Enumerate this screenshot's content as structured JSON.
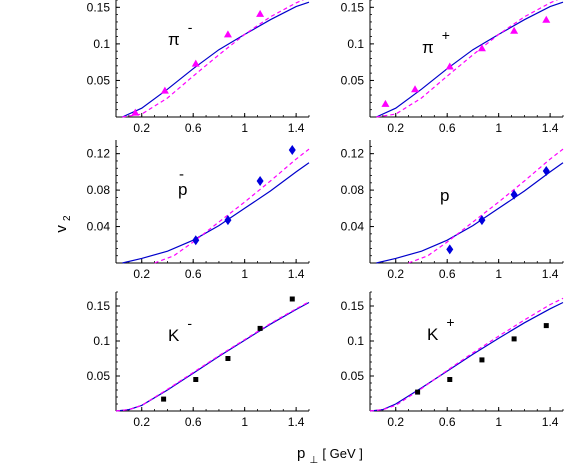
{
  "figure": {
    "ylabel_main": "v",
    "ylabel_sub": "2",
    "xlabel_main": "p",
    "xlabel_sub": "⊥",
    "xlabel_unit": " [ GeV ]"
  },
  "chart_data": [
    {
      "type": "scatter",
      "particle": {
        "base": "π",
        "sup": "-",
        "accent": ""
      },
      "xlim": [
        0,
        1.5
      ],
      "ylim": [
        0,
        0.16
      ],
      "x_ticks": [
        "0.2",
        "0.6",
        "1",
        "1.4"
      ],
      "y_ticks": [
        "0.05",
        "0.1",
        "0.15"
      ],
      "marker": {
        "shape": "triangle",
        "color": "#ff00ff"
      },
      "points": [
        [
          0.15,
          0.006
        ],
        [
          0.38,
          0.036
        ],
        [
          0.62,
          0.073
        ],
        [
          0.87,
          0.113
        ],
        [
          1.12,
          0.141
        ]
      ],
      "series": [
        {
          "style": "solid",
          "color": "#0000cc",
          "points": [
            [
              0.05,
              0.0
            ],
            [
              0.2,
              0.012
            ],
            [
              0.4,
              0.038
            ],
            [
              0.6,
              0.066
            ],
            [
              0.8,
              0.092
            ],
            [
              1.0,
              0.113
            ],
            [
              1.2,
              0.133
            ],
            [
              1.4,
              0.151
            ],
            [
              1.5,
              0.157
            ]
          ]
        },
        {
          "style": "dashed",
          "color": "#ff00ff",
          "points": [
            [
              0.05,
              0.0
            ],
            [
              0.2,
              0.004
            ],
            [
              0.4,
              0.026
            ],
            [
              0.6,
              0.056
            ],
            [
              0.8,
              0.085
            ],
            [
              1.0,
              0.113
            ],
            [
              1.2,
              0.137
            ],
            [
              1.4,
              0.156
            ],
            [
              1.5,
              0.164
            ]
          ]
        }
      ]
    },
    {
      "type": "scatter",
      "particle": {
        "base": "π",
        "sup": "+",
        "accent": ""
      },
      "xlim": [
        0,
        1.5
      ],
      "ylim": [
        0,
        0.16
      ],
      "x_ticks": [
        "0.2",
        "0.6",
        "1",
        "1.4"
      ],
      "y_ticks": [
        "0.05",
        "0.1",
        "0.15"
      ],
      "marker": {
        "shape": "triangle",
        "color": "#ff00ff"
      },
      "points": [
        [
          0.12,
          0.018
        ],
        [
          0.35,
          0.038
        ],
        [
          0.62,
          0.069
        ],
        [
          0.87,
          0.094
        ],
        [
          1.12,
          0.118
        ],
        [
          1.37,
          0.133
        ]
      ],
      "series": [
        {
          "style": "solid",
          "color": "#0000cc",
          "points": [
            [
              0.05,
              0.0
            ],
            [
              0.2,
              0.012
            ],
            [
              0.4,
              0.038
            ],
            [
              0.6,
              0.066
            ],
            [
              0.8,
              0.092
            ],
            [
              1.0,
              0.113
            ],
            [
              1.2,
              0.133
            ],
            [
              1.4,
              0.151
            ],
            [
              1.5,
              0.157
            ]
          ]
        },
        {
          "style": "dashed",
          "color": "#ff00ff",
          "points": [
            [
              0.05,
              0.0
            ],
            [
              0.2,
              0.004
            ],
            [
              0.4,
              0.026
            ],
            [
              0.6,
              0.056
            ],
            [
              0.8,
              0.085
            ],
            [
              1.0,
              0.113
            ],
            [
              1.2,
              0.137
            ],
            [
              1.4,
              0.156
            ],
            [
              1.5,
              0.164
            ]
          ]
        }
      ]
    },
    {
      "type": "scatter",
      "particle": {
        "base": "p",
        "sup": "",
        "accent": "-"
      },
      "xlim": [
        0,
        1.5
      ],
      "ylim": [
        0,
        0.135
      ],
      "x_ticks": [
        "0.2",
        "0.6",
        "1",
        "1.4"
      ],
      "y_ticks": [
        "0.04",
        "0.08",
        "0.12"
      ],
      "marker": {
        "shape": "diamond",
        "color": "#0000dd"
      },
      "points": [
        [
          0.62,
          0.025
        ],
        [
          0.87,
          0.047
        ],
        [
          1.12,
          0.09
        ],
        [
          1.37,
          0.124
        ]
      ],
      "series": [
        {
          "style": "solid",
          "color": "#0000cc",
          "points": [
            [
              0.05,
              0.0
            ],
            [
              0.2,
              0.005
            ],
            [
              0.4,
              0.013
            ],
            [
              0.6,
              0.025
            ],
            [
              0.8,
              0.041
            ],
            [
              1.0,
              0.06
            ],
            [
              1.2,
              0.079
            ],
            [
              1.4,
              0.1
            ],
            [
              1.5,
              0.11
            ]
          ]
        },
        {
          "style": "dashed",
          "color": "#ff00ff",
          "points": [
            [
              0.3,
              0.0
            ],
            [
              0.45,
              0.008
            ],
            [
              0.6,
              0.023
            ],
            [
              0.8,
              0.045
            ],
            [
              1.0,
              0.067
            ],
            [
              1.2,
              0.09
            ],
            [
              1.4,
              0.114
            ],
            [
              1.5,
              0.125
            ]
          ]
        }
      ]
    },
    {
      "type": "scatter",
      "particle": {
        "base": "p",
        "sup": "",
        "accent": ""
      },
      "xlim": [
        0,
        1.5
      ],
      "ylim": [
        0,
        0.135
      ],
      "x_ticks": [
        "0.2",
        "0.6",
        "1",
        "1.4"
      ],
      "y_ticks": [
        "0.04",
        "0.08",
        "0.12"
      ],
      "marker": {
        "shape": "diamond",
        "color": "#0000dd"
      },
      "points": [
        [
          0.62,
          0.015
        ],
        [
          0.87,
          0.047
        ],
        [
          1.12,
          0.075
        ],
        [
          1.37,
          0.101
        ]
      ],
      "series": [
        {
          "style": "solid",
          "color": "#0000cc",
          "points": [
            [
              0.05,
              0.0
            ],
            [
              0.2,
              0.005
            ],
            [
              0.4,
              0.013
            ],
            [
              0.6,
              0.025
            ],
            [
              0.8,
              0.041
            ],
            [
              1.0,
              0.06
            ],
            [
              1.2,
              0.079
            ],
            [
              1.4,
              0.1
            ],
            [
              1.5,
              0.11
            ]
          ]
        },
        {
          "style": "dashed",
          "color": "#ff00ff",
          "points": [
            [
              0.3,
              0.0
            ],
            [
              0.45,
              0.008
            ],
            [
              0.6,
              0.023
            ],
            [
              0.8,
              0.045
            ],
            [
              1.0,
              0.067
            ],
            [
              1.2,
              0.09
            ],
            [
              1.4,
              0.114
            ],
            [
              1.5,
              0.125
            ]
          ]
        }
      ]
    },
    {
      "type": "scatter",
      "particle": {
        "base": "K",
        "sup": "-",
        "accent": ""
      },
      "xlim": [
        0,
        1.5
      ],
      "ylim": [
        0,
        0.17
      ],
      "x_ticks": [
        "0.2",
        "0.6",
        "1",
        "1.4"
      ],
      "y_ticks": [
        "0.05",
        "0.1",
        "0.15"
      ],
      "marker": {
        "shape": "square",
        "color": "#000000"
      },
      "points": [
        [
          0.37,
          0.017
        ],
        [
          0.62,
          0.045
        ],
        [
          0.87,
          0.075
        ],
        [
          1.12,
          0.118
        ],
        [
          1.37,
          0.16
        ]
      ],
      "series": [
        {
          "style": "solid",
          "color": "#0000cc",
          "points": [
            [
              0.0,
              0.0
            ],
            [
              0.1,
              0.002
            ],
            [
              0.2,
              0.008
            ],
            [
              0.4,
              0.03
            ],
            [
              0.6,
              0.054
            ],
            [
              0.8,
              0.078
            ],
            [
              1.0,
              0.101
            ],
            [
              1.2,
              0.124
            ],
            [
              1.4,
              0.145
            ],
            [
              1.5,
              0.155
            ]
          ]
        },
        {
          "style": "dashed",
          "color": "#ff00ff",
          "points": [
            [
              0.0,
              0.0
            ],
            [
              0.1,
              0.002
            ],
            [
              0.2,
              0.008
            ],
            [
              0.4,
              0.031
            ],
            [
              0.6,
              0.055
            ],
            [
              0.8,
              0.079
            ],
            [
              1.0,
              0.102
            ],
            [
              1.2,
              0.125
            ],
            [
              1.4,
              0.146
            ],
            [
              1.5,
              0.156
            ]
          ]
        }
      ]
    },
    {
      "type": "scatter",
      "particle": {
        "base": "K",
        "sup": "+",
        "accent": ""
      },
      "xlim": [
        0,
        1.5
      ],
      "ylim": [
        0,
        0.17
      ],
      "x_ticks": [
        "0.2",
        "0.6",
        "1",
        "1.4"
      ],
      "y_ticks": [
        "0.05",
        "0.1",
        "0.15"
      ],
      "marker": {
        "shape": "square",
        "color": "#000000"
      },
      "points": [
        [
          0.37,
          0.027
        ],
        [
          0.62,
          0.045
        ],
        [
          0.87,
          0.073
        ],
        [
          1.12,
          0.103
        ],
        [
          1.37,
          0.122
        ]
      ],
      "series": [
        {
          "style": "solid",
          "color": "#0000cc",
          "points": [
            [
              0.0,
              0.0
            ],
            [
              0.1,
              0.002
            ],
            [
              0.2,
              0.01
            ],
            [
              0.4,
              0.033
            ],
            [
              0.6,
              0.057
            ],
            [
              0.8,
              0.081
            ],
            [
              1.0,
              0.104
            ],
            [
              1.2,
              0.126
            ],
            [
              1.4,
              0.146
            ],
            [
              1.5,
              0.155
            ]
          ]
        },
        {
          "style": "dashed",
          "color": "#ff00ff",
          "points": [
            [
              0.0,
              0.0
            ],
            [
              0.1,
              0.002
            ],
            [
              0.2,
              0.008
            ],
            [
              0.4,
              0.032
            ],
            [
              0.6,
              0.058
            ],
            [
              0.8,
              0.083
            ],
            [
              1.0,
              0.107
            ],
            [
              1.2,
              0.13
            ],
            [
              1.4,
              0.152
            ],
            [
              1.5,
              0.161
            ]
          ]
        }
      ]
    }
  ]
}
